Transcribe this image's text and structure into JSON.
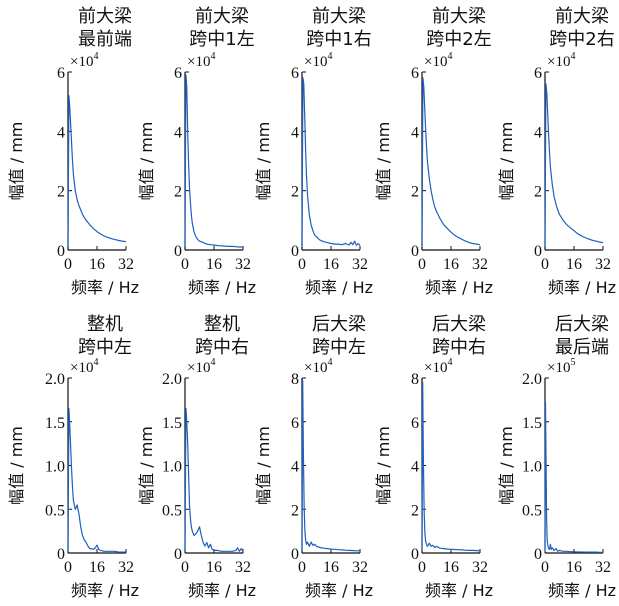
{
  "chart_data": [
    {
      "type": "line",
      "title_lines": [
        "前大梁",
        "最前端"
      ],
      "xlabel": "频率 / Hz",
      "ylabel": "幅值 / mm",
      "exponent": "×10",
      "exponent_power": "4",
      "xlim": [
        0,
        32
      ],
      "ylim": [
        0,
        6
      ],
      "xticks": [
        0,
        16,
        32
      ],
      "yticks": [
        0,
        2,
        4,
        6
      ],
      "ytick_labels": [
        "0",
        "2",
        "4",
        "6"
      ],
      "color": "#1f5fbf",
      "series": [
        {
          "x": [
            0,
            0.5,
            1,
            1.5,
            2,
            2.5,
            3,
            4,
            5,
            6,
            7,
            8,
            10,
            12,
            14,
            16,
            18,
            20,
            22,
            24,
            26,
            28,
            30,
            32
          ],
          "values": [
            0.1,
            5.2,
            4.8,
            4.2,
            3.6,
            3.0,
            2.55,
            2.0,
            1.7,
            1.5,
            1.35,
            1.2,
            1.0,
            0.85,
            0.72,
            0.62,
            0.54,
            0.47,
            0.42,
            0.38,
            0.35,
            0.32,
            0.3,
            0.28
          ]
        }
      ]
    },
    {
      "type": "line",
      "title_lines": [
        "前大梁",
        "跨中1左"
      ],
      "xlabel": "频率 / Hz",
      "ylabel": "幅值 / mm",
      "exponent": "×10",
      "exponent_power": "4",
      "xlim": [
        0,
        32
      ],
      "ylim": [
        0,
        6
      ],
      "xticks": [
        0,
        16,
        32
      ],
      "yticks": [
        0,
        2,
        4,
        6
      ],
      "ytick_labels": [
        "0",
        "2",
        "4",
        "6"
      ],
      "color": "#1f5fbf",
      "series": [
        {
          "x": [
            0,
            0.5,
            1,
            1.5,
            2,
            2.5,
            3,
            3.5,
            4,
            5,
            6,
            7,
            8,
            10,
            12,
            14,
            16,
            18,
            20,
            22,
            24,
            26,
            28,
            30,
            32
          ],
          "values": [
            0.1,
            5.9,
            5.5,
            4.0,
            2.9,
            2.1,
            1.6,
            1.2,
            0.9,
            0.6,
            0.45,
            0.35,
            0.3,
            0.25,
            0.2,
            0.18,
            0.17,
            0.15,
            0.14,
            0.13,
            0.12,
            0.12,
            0.11,
            0.1,
            0.1
          ]
        }
      ]
    },
    {
      "type": "line",
      "title_lines": [
        "前大梁",
        "跨中1右"
      ],
      "xlabel": "频率 / Hz",
      "ylabel": "幅值 / mm",
      "exponent": "×10",
      "exponent_power": "4",
      "xlim": [
        0,
        32
      ],
      "ylim": [
        0,
        6
      ],
      "xticks": [
        0,
        16,
        32
      ],
      "yticks": [
        0,
        2,
        4,
        6
      ],
      "ytick_labels": [
        "0",
        "2",
        "4",
        "6"
      ],
      "color": "#1f5fbf",
      "series": [
        {
          "x": [
            0,
            0.5,
            1,
            1.5,
            2,
            2.5,
            3,
            4,
            5,
            6,
            7,
            8,
            9,
            10,
            12,
            14,
            16,
            18,
            20,
            22,
            24,
            26,
            27,
            28,
            29,
            30,
            31,
            32
          ],
          "values": [
            0.1,
            5.8,
            5.6,
            4.5,
            3.4,
            2.5,
            1.9,
            1.2,
            0.85,
            0.65,
            0.5,
            0.45,
            0.38,
            0.33,
            0.28,
            0.25,
            0.22,
            0.2,
            0.2,
            0.18,
            0.22,
            0.17,
            0.26,
            0.18,
            0.3,
            0.16,
            0.22,
            0.15
          ]
        }
      ]
    },
    {
      "type": "line",
      "title_lines": [
        "前大梁",
        "跨中2左"
      ],
      "xlabel": "频率 / Hz",
      "ylabel": "幅值 / mm",
      "exponent": "×10",
      "exponent_power": "4",
      "xlim": [
        0,
        32
      ],
      "ylim": [
        0,
        6
      ],
      "xticks": [
        0,
        16,
        32
      ],
      "yticks": [
        0,
        2,
        4,
        6
      ],
      "ytick_labels": [
        "0",
        "2",
        "4",
        "6"
      ],
      "color": "#1f5fbf",
      "series": [
        {
          "x": [
            0,
            0.5,
            1,
            1.5,
            2,
            2.5,
            3,
            4,
            5,
            6,
            7,
            8,
            10,
            12,
            14,
            16,
            18,
            20,
            22,
            24,
            26,
            28,
            30,
            32
          ],
          "values": [
            0.1,
            5.8,
            5.5,
            4.8,
            4.1,
            3.5,
            3.0,
            2.4,
            2.0,
            1.7,
            1.45,
            1.3,
            1.05,
            0.85,
            0.72,
            0.6,
            0.5,
            0.42,
            0.36,
            0.3,
            0.25,
            0.22,
            0.2,
            0.18
          ]
        }
      ]
    },
    {
      "type": "line",
      "title_lines": [
        "前大梁",
        "跨中2右"
      ],
      "xlabel": "频率 / Hz",
      "ylabel": "幅值 / mm",
      "exponent": "×10",
      "exponent_power": "4",
      "xlim": [
        0,
        32
      ],
      "ylim": [
        0,
        6
      ],
      "xticks": [
        0,
        16,
        32
      ],
      "yticks": [
        0,
        2,
        4,
        6
      ],
      "ytick_labels": [
        "0",
        "2",
        "4",
        "6"
      ],
      "color": "#1f5fbf",
      "series": [
        {
          "x": [
            0,
            0.5,
            1,
            1.5,
            2,
            2.5,
            3,
            4,
            5,
            6,
            7,
            8,
            10,
            12,
            14,
            16,
            18,
            20,
            22,
            24,
            26,
            28,
            30,
            32
          ],
          "values": [
            0.1,
            5.6,
            5.3,
            4.6,
            3.9,
            3.3,
            2.8,
            2.2,
            1.8,
            1.55,
            1.35,
            1.2,
            1.0,
            0.85,
            0.75,
            0.65,
            0.55,
            0.48,
            0.42,
            0.37,
            0.33,
            0.3,
            0.27,
            0.25
          ]
        }
      ]
    },
    {
      "type": "line",
      "title_lines": [
        "整机",
        "跨中左"
      ],
      "xlabel": "频率 / Hz",
      "ylabel": "幅值 / mm",
      "exponent": "×10",
      "exponent_power": "4",
      "xlim": [
        0,
        32
      ],
      "ylim": [
        0,
        2.0
      ],
      "xticks": [
        0,
        16,
        32
      ],
      "yticks": [
        0,
        0.5,
        1.0,
        1.5,
        2.0
      ],
      "ytick_labels": [
        "0",
        "0.5",
        "1.0",
        "1.5",
        "2.0"
      ],
      "color": "#1f5fbf",
      "series": [
        {
          "x": [
            0,
            0.5,
            1,
            1.5,
            2,
            2.5,
            3,
            3.5,
            4,
            4.5,
            5,
            5.5,
            6,
            7,
            8,
            9,
            10,
            11,
            12,
            13,
            14,
            15,
            16,
            17,
            18,
            20,
            22,
            24,
            26,
            28,
            30,
            32
          ],
          "values": [
            0.02,
            1.65,
            1.45,
            1.2,
            0.95,
            0.75,
            0.6,
            0.55,
            0.5,
            0.52,
            0.55,
            0.5,
            0.45,
            0.3,
            0.2,
            0.15,
            0.12,
            0.08,
            0.05,
            0.05,
            0.04,
            0.06,
            0.09,
            0.04,
            0.03,
            0.02,
            0.02,
            0.02,
            0.02,
            0.01,
            0.01,
            0.01
          ]
        }
      ]
    },
    {
      "type": "line",
      "title_lines": [
        "整机",
        "跨中右"
      ],
      "xlabel": "频率 / Hz",
      "ylabel": "幅值 / mm",
      "exponent": "×10",
      "exponent_power": "4",
      "xlim": [
        0,
        32
      ],
      "ylim": [
        0,
        2.0
      ],
      "xticks": [
        0,
        16,
        32
      ],
      "yticks": [
        0,
        0.5,
        1.0,
        1.5,
        2.0
      ],
      "ytick_labels": [
        "0",
        "0.5",
        "1.0",
        "1.5",
        "2.0"
      ],
      "color": "#1f5fbf",
      "series": [
        {
          "x": [
            0,
            0.5,
            1,
            1.5,
            2,
            2.5,
            3,
            3.5,
            4,
            5,
            6,
            7,
            8,
            9,
            10,
            11,
            12,
            13,
            14,
            15,
            16,
            18,
            20,
            22,
            24,
            26,
            28,
            29,
            30,
            31,
            32
          ],
          "values": [
            0.02,
            1.65,
            1.5,
            1.25,
            0.9,
            0.55,
            0.4,
            0.3,
            0.25,
            0.2,
            0.22,
            0.25,
            0.3,
            0.2,
            0.12,
            0.08,
            0.12,
            0.06,
            0.1,
            0.04,
            0.03,
            0.03,
            0.02,
            0.02,
            0.02,
            0.02,
            0.03,
            0.06,
            0.02,
            0.05,
            0.02
          ]
        }
      ]
    },
    {
      "type": "line",
      "title_lines": [
        "后大梁",
        "跨中左"
      ],
      "xlabel": "频率 / Hz",
      "ylabel": "幅值 / mm",
      "exponent": "×10",
      "exponent_power": "4",
      "xlim": [
        0,
        32
      ],
      "ylim": [
        0,
        8
      ],
      "xticks": [
        0,
        16,
        32
      ],
      "yticks": [
        0,
        2,
        4,
        6,
        8
      ],
      "ytick_labels": [
        "0",
        "2",
        "4",
        "6",
        "8"
      ],
      "color": "#1f5fbf",
      "series": [
        {
          "x": [
            0,
            0.4,
            0.8,
            1.2,
            1.6,
            2,
            2.5,
            3,
            4,
            5,
            6,
            7,
            8,
            10,
            12,
            14,
            16,
            18,
            20,
            22,
            24,
            26,
            28,
            30,
            32
          ],
          "values": [
            0.1,
            7.9,
            4.5,
            2.0,
            1.0,
            0.6,
            0.4,
            0.5,
            0.3,
            0.5,
            0.35,
            0.4,
            0.3,
            0.25,
            0.22,
            0.2,
            0.18,
            0.17,
            0.15,
            0.14,
            0.13,
            0.12,
            0.11,
            0.1,
            0.1
          ]
        }
      ]
    },
    {
      "type": "line",
      "title_lines": [
        "后大梁",
        "跨中右"
      ],
      "xlabel": "频率 / Hz",
      "ylabel": "幅值 / mm",
      "exponent": "×10",
      "exponent_power": "4",
      "xlim": [
        0,
        32
      ],
      "ylim": [
        0,
        8
      ],
      "xticks": [
        0,
        16,
        32
      ],
      "yticks": [
        0,
        2,
        4,
        6,
        8
      ],
      "ytick_labels": [
        "0",
        "2",
        "4",
        "6",
        "8"
      ],
      "color": "#1f5fbf",
      "series": [
        {
          "x": [
            0,
            0.4,
            0.8,
            1.2,
            1.6,
            2,
            2.5,
            3,
            4,
            5,
            6,
            7,
            8,
            10,
            12,
            14,
            16,
            18,
            20,
            22,
            24,
            26,
            28,
            30,
            32
          ],
          "values": [
            0.1,
            7.8,
            4.2,
            1.8,
            0.9,
            0.55,
            0.4,
            0.3,
            0.45,
            0.3,
            0.35,
            0.25,
            0.3,
            0.22,
            0.2,
            0.18,
            0.17,
            0.16,
            0.15,
            0.14,
            0.13,
            0.12,
            0.12,
            0.11,
            0.1
          ]
        }
      ]
    },
    {
      "type": "line",
      "title_lines": [
        "后大梁",
        "最后端"
      ],
      "xlabel": "频率 / Hz",
      "ylabel": "幅值 / mm",
      "exponent": "×10",
      "exponent_power": "5",
      "xlim": [
        0,
        32
      ],
      "ylim": [
        0,
        2.0
      ],
      "xticks": [
        0,
        16,
        32
      ],
      "yticks": [
        0,
        0.5,
        1.0,
        1.5,
        2.0
      ],
      "ytick_labels": [
        "0",
        "0.5",
        "1.0",
        "1.5",
        "2.0"
      ],
      "color": "#1f5fbf",
      "series": [
        {
          "x": [
            0,
            0.3,
            0.6,
            0.9,
            1.2,
            1.6,
            2,
            2.5,
            3,
            3.5,
            4,
            5,
            6,
            7,
            8,
            10,
            12,
            14,
            16,
            18,
            20,
            22,
            24,
            26,
            28,
            30,
            32
          ],
          "values": [
            0.01,
            1.72,
            1.0,
            0.4,
            0.15,
            0.08,
            0.05,
            0.04,
            0.1,
            0.04,
            0.06,
            0.03,
            0.05,
            0.02,
            0.03,
            0.02,
            0.02,
            0.015,
            0.015,
            0.012,
            0.012,
            0.01,
            0.01,
            0.01,
            0.01,
            0.008,
            0.008
          ]
        }
      ]
    }
  ]
}
